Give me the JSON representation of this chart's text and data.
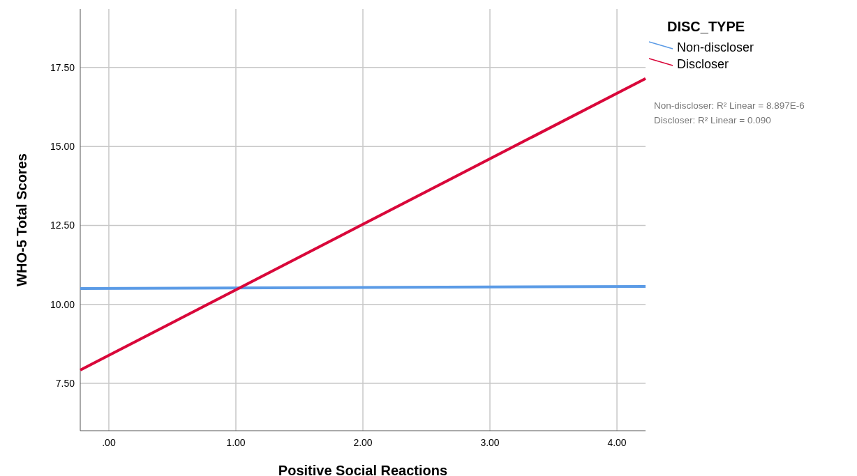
{
  "chart_data": {
    "type": "line",
    "xlabel": "Positive Social Reactions",
    "ylabel": "WHO-5 Total Scores",
    "legend_title": "DISC_TYPE",
    "legend": "top right",
    "grid": true,
    "marker": "none",
    "line_style": "solid",
    "xlim": [
      -0.225,
      4.225
    ],
    "ylim": [
      6.0,
      19.35
    ],
    "xticks": [
      {
        "value": 0,
        "label": ".00"
      },
      {
        "value": 1,
        "label": "1.00"
      },
      {
        "value": 2,
        "label": "2.00"
      },
      {
        "value": 3,
        "label": "3.00"
      },
      {
        "value": 4,
        "label": "4.00"
      }
    ],
    "yticks": [
      {
        "value": 7.5,
        "label": "7.50"
      },
      {
        "value": 10,
        "label": "10.00"
      },
      {
        "value": 12.5,
        "label": "12.50"
      },
      {
        "value": 15,
        "label": "15.00"
      },
      {
        "value": 17.5,
        "label": "17.50"
      }
    ],
    "x": [
      -0.225,
      4.225
    ],
    "series": [
      {
        "name": "Non-discloser",
        "color": "#5b9be6",
        "values": [
          10.5,
          10.57
        ]
      },
      {
        "name": "Discloser",
        "color": "#d9073a",
        "values": [
          7.92,
          17.15
        ]
      }
    ],
    "annotations": [
      "Non-discloser: R² Linear = 8.897E-6",
      "Discloser: R² Linear = 0.090"
    ]
  }
}
